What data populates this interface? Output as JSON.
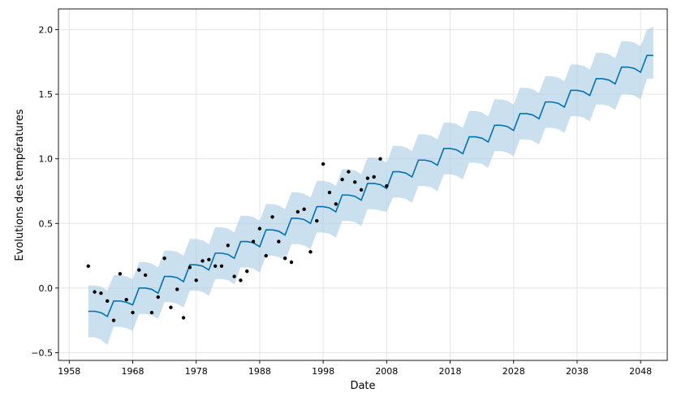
{
  "chart_data": {
    "type": "line",
    "title": "",
    "xlabel": "Date",
    "ylabel": "Evolutions des températures",
    "xlim": [
      1956.3,
      2052.2
    ],
    "ylim": [
      -0.56,
      2.16
    ],
    "x_ticks": [
      1958,
      1968,
      1978,
      1988,
      1998,
      2008,
      2018,
      2028,
      2038,
      2048
    ],
    "x_tick_labels": [
      "1958",
      "1968",
      "1978",
      "1988",
      "1998",
      "2008",
      "2018",
      "2028",
      "2038",
      "2048"
    ],
    "y_ticks": [
      -0.5,
      0.0,
      0.5,
      1.0,
      1.5,
      2.0
    ],
    "y_tick_labels": [
      "−0.5",
      "0.0",
      "0.5",
      "1.0",
      "1.5",
      "2.0"
    ],
    "grid": true,
    "legend": "none",
    "colors": {
      "forecast": "#0072B2",
      "band": "#a6cce3",
      "observed": "#000000",
      "grid": "#e5e5e5"
    },
    "observed": {
      "x": [
        1961,
        1962,
        1963,
        1964,
        1965,
        1966,
        1967,
        1968,
        1969,
        1970,
        1971,
        1972,
        1973,
        1974,
        1975,
        1976,
        1977,
        1978,
        1979,
        1980,
        1981,
        1982,
        1983,
        1984,
        1985,
        1986,
        1987,
        1988,
        1989,
        1990,
        1991,
        1992,
        1993,
        1994,
        1995,
        1996,
        1997,
        1998,
        1999,
        2000,
        2001,
        2002,
        2003,
        2004,
        2005,
        2006,
        2007,
        2008
      ],
      "y": [
        0.17,
        -0.03,
        -0.04,
        -0.1,
        -0.25,
        0.11,
        -0.09,
        -0.19,
        0.14,
        0.1,
        -0.19,
        -0.07,
        0.23,
        -0.15,
        -0.01,
        -0.23,
        0.16,
        0.06,
        0.21,
        0.22,
        0.17,
        0.17,
        0.33,
        0.09,
        0.06,
        0.13,
        0.36,
        0.46,
        0.25,
        0.55,
        0.36,
        0.23,
        0.2,
        0.59,
        0.61,
        0.28,
        0.52,
        0.96,
        0.74,
        0.65,
        0.84,
        0.9,
        0.82,
        0.76,
        0.85,
        0.86,
        1.0,
        0.79
      ]
    },
    "forecast": {
      "x": [
        1961,
        1962,
        1963,
        1964,
        1965,
        1966,
        1967,
        1968,
        1969,
        1970,
        1971,
        1972,
        1973,
        1974,
        1975,
        1976,
        1977,
        1978,
        1979,
        1980,
        1981,
        1982,
        1983,
        1984,
        1985,
        1986,
        1987,
        1988,
        1989,
        1990,
        1991,
        1992,
        1993,
        1994,
        1995,
        1996,
        1997,
        1998,
        1999,
        2000,
        2001,
        2002,
        2003,
        2004,
        2005,
        2006,
        2007,
        2008,
        2009,
        2010,
        2011,
        2012,
        2013,
        2014,
        2015,
        2016,
        2017,
        2018,
        2019,
        2020,
        2021,
        2022,
        2023,
        2024,
        2025,
        2026,
        2027,
        2028,
        2029,
        2030,
        2031,
        2032,
        2033,
        2034,
        2035,
        2036,
        2037,
        2038,
        2039,
        2040,
        2041,
        2042,
        2043,
        2044,
        2045,
        2046,
        2047,
        2048,
        2049,
        2050
      ],
      "yhat": [
        -0.18,
        -0.18,
        -0.19,
        -0.22,
        -0.1,
        -0.1,
        -0.11,
        -0.13,
        0.0,
        0.0,
        -0.01,
        -0.04,
        0.09,
        0.09,
        0.08,
        0.05,
        0.18,
        0.18,
        0.17,
        0.14,
        0.27,
        0.27,
        0.26,
        0.23,
        0.36,
        0.36,
        0.35,
        0.32,
        0.45,
        0.45,
        0.44,
        0.41,
        0.54,
        0.54,
        0.53,
        0.5,
        0.63,
        0.63,
        0.62,
        0.59,
        0.72,
        0.72,
        0.71,
        0.68,
        0.81,
        0.81,
        0.8,
        0.77,
        0.9,
        0.9,
        0.89,
        0.86,
        0.99,
        0.99,
        0.98,
        0.95,
        1.08,
        1.08,
        1.07,
        1.04,
        1.17,
        1.17,
        1.16,
        1.13,
        1.26,
        1.26,
        1.25,
        1.22,
        1.35,
        1.35,
        1.34,
        1.31,
        1.44,
        1.44,
        1.43,
        1.4,
        1.53,
        1.53,
        1.52,
        1.49,
        1.62,
        1.62,
        1.61,
        1.58,
        1.71,
        1.71,
        1.7,
        1.67,
        1.8,
        1.8
      ],
      "yhat_lower": [
        -0.38,
        -0.38,
        -0.4,
        -0.44,
        -0.3,
        -0.3,
        -0.31,
        -0.33,
        -0.2,
        -0.2,
        -0.21,
        -0.24,
        -0.11,
        -0.11,
        -0.12,
        -0.15,
        -0.02,
        -0.02,
        -0.03,
        -0.06,
        0.07,
        0.07,
        0.06,
        0.03,
        0.16,
        0.16,
        0.15,
        0.12,
        0.25,
        0.25,
        0.24,
        0.21,
        0.34,
        0.34,
        0.33,
        0.3,
        0.43,
        0.43,
        0.42,
        0.39,
        0.52,
        0.52,
        0.51,
        0.48,
        0.61,
        0.61,
        0.6,
        0.59,
        0.7,
        0.7,
        0.69,
        0.66,
        0.79,
        0.79,
        0.78,
        0.75,
        0.88,
        0.88,
        0.87,
        0.84,
        0.97,
        0.97,
        0.96,
        0.93,
        1.06,
        1.06,
        1.05,
        1.02,
        1.15,
        1.15,
        1.14,
        1.11,
        1.24,
        1.24,
        1.23,
        1.2,
        1.33,
        1.33,
        1.32,
        1.29,
        1.42,
        1.42,
        1.41,
        1.38,
        1.5,
        1.5,
        1.49,
        1.46,
        1.62,
        1.62
      ],
      "yhat_upper": [
        0.02,
        0.02,
        0.01,
        -0.02,
        0.1,
        0.1,
        0.09,
        0.07,
        0.2,
        0.2,
        0.19,
        0.16,
        0.29,
        0.29,
        0.28,
        0.25,
        0.38,
        0.38,
        0.37,
        0.34,
        0.47,
        0.47,
        0.46,
        0.43,
        0.56,
        0.56,
        0.55,
        0.52,
        0.65,
        0.65,
        0.64,
        0.61,
        0.74,
        0.74,
        0.73,
        0.7,
        0.83,
        0.83,
        0.82,
        0.79,
        0.92,
        0.92,
        0.91,
        0.88,
        1.01,
        1.01,
        1.0,
        0.97,
        1.1,
        1.1,
        1.09,
        1.06,
        1.19,
        1.19,
        1.18,
        1.15,
        1.28,
        1.28,
        1.27,
        1.24,
        1.37,
        1.37,
        1.36,
        1.33,
        1.46,
        1.46,
        1.45,
        1.42,
        1.55,
        1.55,
        1.54,
        1.51,
        1.64,
        1.64,
        1.63,
        1.6,
        1.73,
        1.73,
        1.72,
        1.69,
        1.82,
        1.82,
        1.81,
        1.78,
        1.91,
        1.91,
        1.9,
        1.87,
        2.0,
        2.02
      ]
    }
  }
}
